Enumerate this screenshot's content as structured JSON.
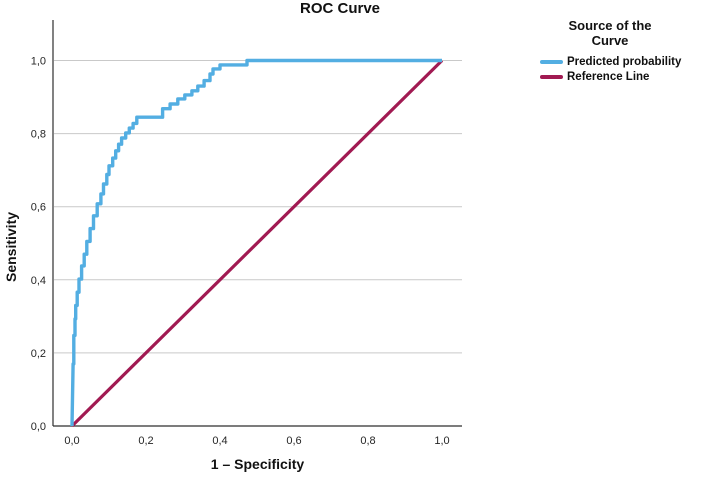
{
  "chart_data": {
    "type": "line",
    "title": "ROC Curve",
    "xlabel": "1 – Specificity",
    "ylabel": "Sensitivity",
    "xlim": [
      0,
      1
    ],
    "ylim": [
      0,
      1
    ],
    "grid": "horizontal-only",
    "decimal_separator": ",",
    "x_ticks": [
      {
        "value": 0.0,
        "label": "0,0"
      },
      {
        "value": 0.2,
        "label": "0,2"
      },
      {
        "value": 0.4,
        "label": "0,4"
      },
      {
        "value": 0.6,
        "label": "0,6"
      },
      {
        "value": 0.8,
        "label": "0,8"
      },
      {
        "value": 1.0,
        "label": "1,0"
      }
    ],
    "y_ticks": [
      {
        "value": 0.0,
        "label": "0,0"
      },
      {
        "value": 0.2,
        "label": "0,2"
      },
      {
        "value": 0.4,
        "label": "0,4"
      },
      {
        "value": 0.6,
        "label": "0,6"
      },
      {
        "value": 0.8,
        "label": "0,8"
      },
      {
        "value": 1.0,
        "label": "1,0"
      }
    ],
    "legend": {
      "title": "Source of the Curve",
      "position": "right"
    },
    "colors": {
      "grid": "#c9c9c9",
      "axis": "#2e2e2e",
      "tick_text": "#262626"
    },
    "series": [
      {
        "name": "Predicted probability",
        "color": "#53aee2",
        "stroke_width": 3.4,
        "shape": "step",
        "points": [
          [
            0.0,
            0.0
          ],
          [
            0.003,
            0.17
          ],
          [
            0.005,
            0.17
          ],
          [
            0.005,
            0.248
          ],
          [
            0.008,
            0.248
          ],
          [
            0.008,
            0.293
          ],
          [
            0.01,
            0.293
          ],
          [
            0.01,
            0.33
          ],
          [
            0.014,
            0.33
          ],
          [
            0.014,
            0.366
          ],
          [
            0.019,
            0.366
          ],
          [
            0.019,
            0.402
          ],
          [
            0.026,
            0.402
          ],
          [
            0.026,
            0.438
          ],
          [
            0.033,
            0.438
          ],
          [
            0.033,
            0.47
          ],
          [
            0.04,
            0.47
          ],
          [
            0.04,
            0.505
          ],
          [
            0.049,
            0.505
          ],
          [
            0.049,
            0.54
          ],
          [
            0.058,
            0.54
          ],
          [
            0.058,
            0.575
          ],
          [
            0.068,
            0.575
          ],
          [
            0.068,
            0.608
          ],
          [
            0.078,
            0.608
          ],
          [
            0.078,
            0.635
          ],
          [
            0.085,
            0.635
          ],
          [
            0.085,
            0.662
          ],
          [
            0.094,
            0.662
          ],
          [
            0.094,
            0.688
          ],
          [
            0.1,
            0.688
          ],
          [
            0.1,
            0.712
          ],
          [
            0.11,
            0.712
          ],
          [
            0.11,
            0.733
          ],
          [
            0.118,
            0.733
          ],
          [
            0.118,
            0.753
          ],
          [
            0.126,
            0.753
          ],
          [
            0.126,
            0.771
          ],
          [
            0.134,
            0.771
          ],
          [
            0.134,
            0.788
          ],
          [
            0.145,
            0.788
          ],
          [
            0.145,
            0.802
          ],
          [
            0.155,
            0.802
          ],
          [
            0.155,
            0.815
          ],
          [
            0.165,
            0.815
          ],
          [
            0.165,
            0.828
          ],
          [
            0.175,
            0.828
          ],
          [
            0.175,
            0.845
          ],
          [
            0.245,
            0.845
          ],
          [
            0.245,
            0.868
          ],
          [
            0.265,
            0.868
          ],
          [
            0.265,
            0.881
          ],
          [
            0.286,
            0.881
          ],
          [
            0.286,
            0.895
          ],
          [
            0.305,
            0.895
          ],
          [
            0.305,
            0.906
          ],
          [
            0.324,
            0.906
          ],
          [
            0.324,
            0.917
          ],
          [
            0.34,
            0.917
          ],
          [
            0.34,
            0.93
          ],
          [
            0.357,
            0.93
          ],
          [
            0.357,
            0.945
          ],
          [
            0.373,
            0.945
          ],
          [
            0.373,
            0.963
          ],
          [
            0.381,
            0.963
          ],
          [
            0.381,
            0.977
          ],
          [
            0.4,
            0.977
          ],
          [
            0.4,
            0.988
          ],
          [
            0.473,
            0.988
          ],
          [
            0.473,
            1.0
          ],
          [
            1.0,
            1.0
          ]
        ]
      },
      {
        "name": "Reference Line",
        "color": "#a11a52",
        "stroke_width": 3.2,
        "shape": "straight",
        "points": [
          [
            0.0,
            0.0
          ],
          [
            1.0,
            1.0
          ]
        ]
      }
    ]
  }
}
